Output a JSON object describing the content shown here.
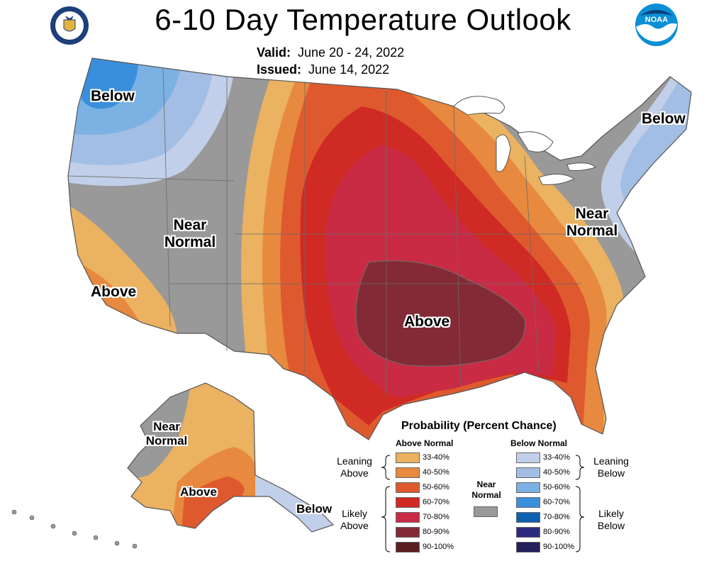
{
  "title": "6-10 Day Temperature Outlook",
  "valid_label": "Valid:",
  "valid_value": "June 20 - 24, 2022",
  "issued_label": "Issued:",
  "issued_value": "June 14, 2022",
  "logos": {
    "left": "department-of-commerce-seal",
    "right": "noaa-logo"
  },
  "map_labels": {
    "nw_below": "Below",
    "ne_below": "Below",
    "west_near": "Near",
    "west_normal": "Normal",
    "east_near": "Near",
    "east_normal": "Normal",
    "ca_above": "Above",
    "central_above": "Above",
    "ak_near": "Near",
    "ak_normal": "Normal",
    "ak_above": "Above",
    "ak_below": "Below"
  },
  "legend": {
    "title": "Probability (Percent Chance)",
    "above_header": "Above Normal",
    "below_header": "Below Normal",
    "near_normal_line1": "Near",
    "near_normal_line2": "Normal",
    "near_normal_color": "#999999",
    "leaning_above_1": "Leaning",
    "leaning_above_2": "Above",
    "likely_above_1": "Likely",
    "likely_above_2": "Above",
    "leaning_below_1": "Leaning",
    "leaning_below_2": "Below",
    "likely_below_1": "Likely",
    "likely_below_2": "Below",
    "above": [
      {
        "label": "33-40%",
        "color": "#EAB261"
      },
      {
        "label": "40-50%",
        "color": "#E7893E"
      },
      {
        "label": "50-60%",
        "color": "#DE5A2E"
      },
      {
        "label": "60-70%",
        "color": "#D02A25"
      },
      {
        "label": "70-80%",
        "color": "#C92B44"
      },
      {
        "label": "80-90%",
        "color": "#832A36"
      },
      {
        "label": "90-100%",
        "color": "#5A1E20"
      }
    ],
    "below": [
      {
        "label": "33-40%",
        "color": "#C2CFEA"
      },
      {
        "label": "40-50%",
        "color": "#A2BEE4"
      },
      {
        "label": "50-60%",
        "color": "#7CB1E3"
      },
      {
        "label": "60-70%",
        "color": "#3A8FDD"
      },
      {
        "label": "70-80%",
        "color": "#0E61B0"
      },
      {
        "label": "80-90%",
        "color": "#2C2A7F"
      },
      {
        "label": "90-100%",
        "color": "#23205C"
      }
    ]
  }
}
